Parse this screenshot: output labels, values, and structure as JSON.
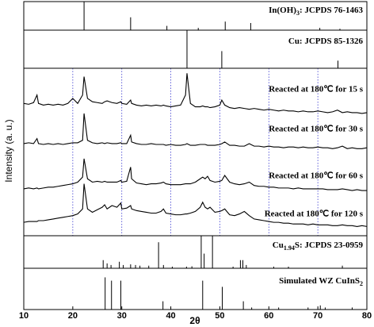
{
  "chart_data": [
    {
      "type": "stick",
      "label": [
        {
          "text": "In(OH)"
        },
        {
          "text": "3",
          "sub": true
        },
        {
          "text": ": JCPDS 76-1463"
        }
      ],
      "positions": [
        22.3,
        31.8,
        39.2,
        45.6,
        51.1,
        56.3,
        70.4,
        74.5
      ],
      "values": [
        100,
        45,
        15,
        8,
        30,
        25,
        8,
        5
      ],
      "color": "#000000",
      "xlim": [
        10,
        80
      ],
      "ylim": [
        0,
        100
      ]
    },
    {
      "type": "stick",
      "label": [
        {
          "text": "Cu: JCPDS 85-1326"
        }
      ],
      "positions": [
        43.3,
        50.4,
        74.1
      ],
      "values": [
        100,
        45,
        20
      ],
      "color": "#000000",
      "xlim": [
        10,
        80
      ],
      "ylim": [
        0,
        100
      ]
    },
    {
      "type": "line",
      "ylabel": "Intensity (a. u.)",
      "xlim": [
        10,
        80
      ],
      "ylim": [
        0,
        100
      ],
      "grid": "x",
      "grid_color": "#3a3ad0",
      "x": [
        10,
        11,
        12,
        12.7,
        13,
        14,
        15,
        16,
        17,
        18,
        19,
        20,
        21,
        22,
        22.3,
        23,
        24,
        25,
        26,
        26.5,
        27,
        28,
        29,
        29.8,
        30,
        31,
        31.8,
        32,
        33,
        34,
        35,
        36,
        37,
        38,
        38.5,
        39,
        40,
        41,
        42,
        43,
        43.3,
        44,
        45,
        46,
        46.5,
        47,
        47.5,
        48,
        49,
        50,
        50.4,
        51,
        52,
        53,
        54,
        55,
        56,
        57,
        58,
        59,
        60,
        61,
        62,
        63,
        64,
        65,
        66,
        67,
        68,
        69,
        70,
        71,
        72,
        73,
        74,
        75,
        76,
        77,
        78,
        79,
        80
      ],
      "series": [
        {
          "name": "Reacted at 180℃ for 15 s",
          "color": "#000000",
          "values": [
            79,
            78.5,
            79.5,
            84,
            79,
            78,
            78.5,
            78,
            78.5,
            78,
            79,
            82,
            79,
            84,
            95,
            82,
            80,
            79.5,
            79,
            80,
            80.5,
            79.5,
            79,
            80,
            79,
            78.5,
            81,
            79,
            78,
            77.5,
            78,
            77.5,
            78,
            77.5,
            78,
            77.5,
            77,
            77.5,
            78,
            84,
            97,
            79,
            77,
            77,
            77.5,
            77,
            77,
            76.5,
            77,
            78,
            81,
            78,
            76.5,
            76,
            76.5,
            76,
            75.5,
            76,
            75.5,
            75,
            75.5,
            75,
            74.5,
            75,
            74.5,
            74.5,
            74,
            74.5,
            74,
            74,
            74.5,
            74,
            73.5,
            74,
            75,
            73.5,
            74,
            73.5,
            73.5,
            73,
            73.5
          ]
        },
        {
          "name": "Reacted at 180℃ for 30 s",
          "color": "#000000",
          "values": [
            55,
            55.5,
            55,
            58,
            55,
            54.5,
            55,
            54.5,
            55,
            54.5,
            55,
            55.5,
            55.5,
            57,
            73,
            57,
            55.5,
            55,
            55.5,
            55,
            55.5,
            55,
            55,
            55.5,
            55,
            55,
            60,
            56,
            55,
            54.5,
            54.5,
            55,
            54.5,
            54.5,
            54.5,
            54,
            54.5,
            54,
            54,
            54.5,
            55,
            54,
            54,
            54.5,
            54.5,
            54.5,
            54,
            54,
            54,
            54.5,
            55,
            56,
            54,
            54,
            53.5,
            53.5,
            55,
            53.5,
            53.5,
            53,
            53.5,
            53,
            53,
            52.5,
            53,
            53,
            52.5,
            53,
            52.5,
            52.5,
            53,
            52.5,
            52.5,
            52,
            52.5,
            53.5,
            52,
            52.5,
            52,
            52,
            52.5
          ]
        },
        {
          "name": "Reacted at 180℃ for 60 s",
          "color": "#000000",
          "values": [
            28,
            28.5,
            28,
            28.5,
            28,
            28.5,
            29,
            29,
            29.5,
            30,
            30.5,
            31,
            32,
            35,
            46,
            34,
            32,
            32.5,
            32,
            32.5,
            32,
            32,
            32,
            33,
            32,
            32.5,
            41,
            34,
            31.5,
            31,
            30.5,
            31,
            31,
            31.5,
            32,
            31,
            30.5,
            30.5,
            30.5,
            31,
            31,
            31,
            32,
            34,
            35,
            34,
            35.5,
            33,
            32,
            32.5,
            33,
            36,
            32,
            31,
            30.5,
            31,
            32,
            30,
            29.5,
            29.5,
            29,
            29,
            28.5,
            28.5,
            28.5,
            28,
            28.5,
            28,
            28,
            28,
            28,
            28,
            27.5,
            27.5,
            27.5,
            28,
            27.5,
            27,
            27.5,
            27,
            27
          ]
        },
        {
          "name": "Reacted at 180℃ for 120 s",
          "color": "#000000",
          "values": [
            8,
            8.5,
            8.5,
            8.5,
            9,
            9,
            9.5,
            10,
            10.5,
            11,
            11.5,
            12,
            13,
            16,
            31,
            16,
            14,
            15.5,
            17,
            18.5,
            16,
            18,
            17,
            19.5,
            16,
            16.5,
            18,
            16,
            15,
            14.5,
            14,
            13.5,
            13.5,
            14.5,
            16,
            13.5,
            13,
            12.5,
            12.5,
            13,
            13,
            13.5,
            14.5,
            17,
            20,
            17,
            16,
            17,
            14,
            14.5,
            15,
            16,
            12.5,
            12,
            13,
            14.5,
            12,
            10,
            9.5,
            9,
            8.5,
            8,
            8,
            7.5,
            7.5,
            7,
            7,
            7,
            6.5,
            7,
            6.5,
            6.5,
            6.5,
            6,
            6,
            6.5,
            6,
            6,
            5.5,
            6,
            5.5
          ]
        }
      ]
    },
    {
      "type": "stick",
      "label": [
        {
          "text": "Cu"
        },
        {
          "text": "1.94",
          "sub": true
        },
        {
          "text": "S: JCPDS 23-0959"
        }
      ],
      "positions": [
        26.2,
        27.0,
        27.8,
        29.5,
        30.3,
        31.8,
        32.8,
        33.7,
        35.5,
        37.5,
        38.5,
        40.3,
        43.2,
        44.3,
        46.2,
        46.8,
        48.5,
        52.7,
        54.2,
        54.7,
        55.4,
        61,
        64,
        75
      ],
      "values": [
        25,
        15,
        10,
        20,
        10,
        12,
        10,
        8,
        8,
        80,
        10,
        5,
        5,
        6,
        100,
        45,
        100,
        5,
        25,
        25,
        10,
        5,
        5,
        8
      ],
      "color": "#000000",
      "xlim": [
        10,
        80
      ],
      "ylim": [
        0,
        100
      ]
    },
    {
      "type": "stick",
      "label": [
        {
          "text": "Simulated WZ CuInS"
        },
        {
          "text": "2",
          "sub": true
        }
      ],
      "positions": [
        26.6,
        27.9,
        29.8,
        38.4,
        46.5,
        50.5,
        54.8,
        56.5,
        62,
        68,
        70.5,
        71.5,
        77
      ],
      "values": [
        78,
        70,
        70,
        20,
        70,
        55,
        20,
        5,
        5,
        5,
        10,
        5,
        5
      ],
      "color": "#000000",
      "xlim": [
        10,
        80
      ],
      "ylim": [
        0,
        100
      ],
      "xticks": [
        10,
        20,
        30,
        40,
        50,
        60,
        70,
        80
      ],
      "xlabel": "2θ"
    }
  ]
}
